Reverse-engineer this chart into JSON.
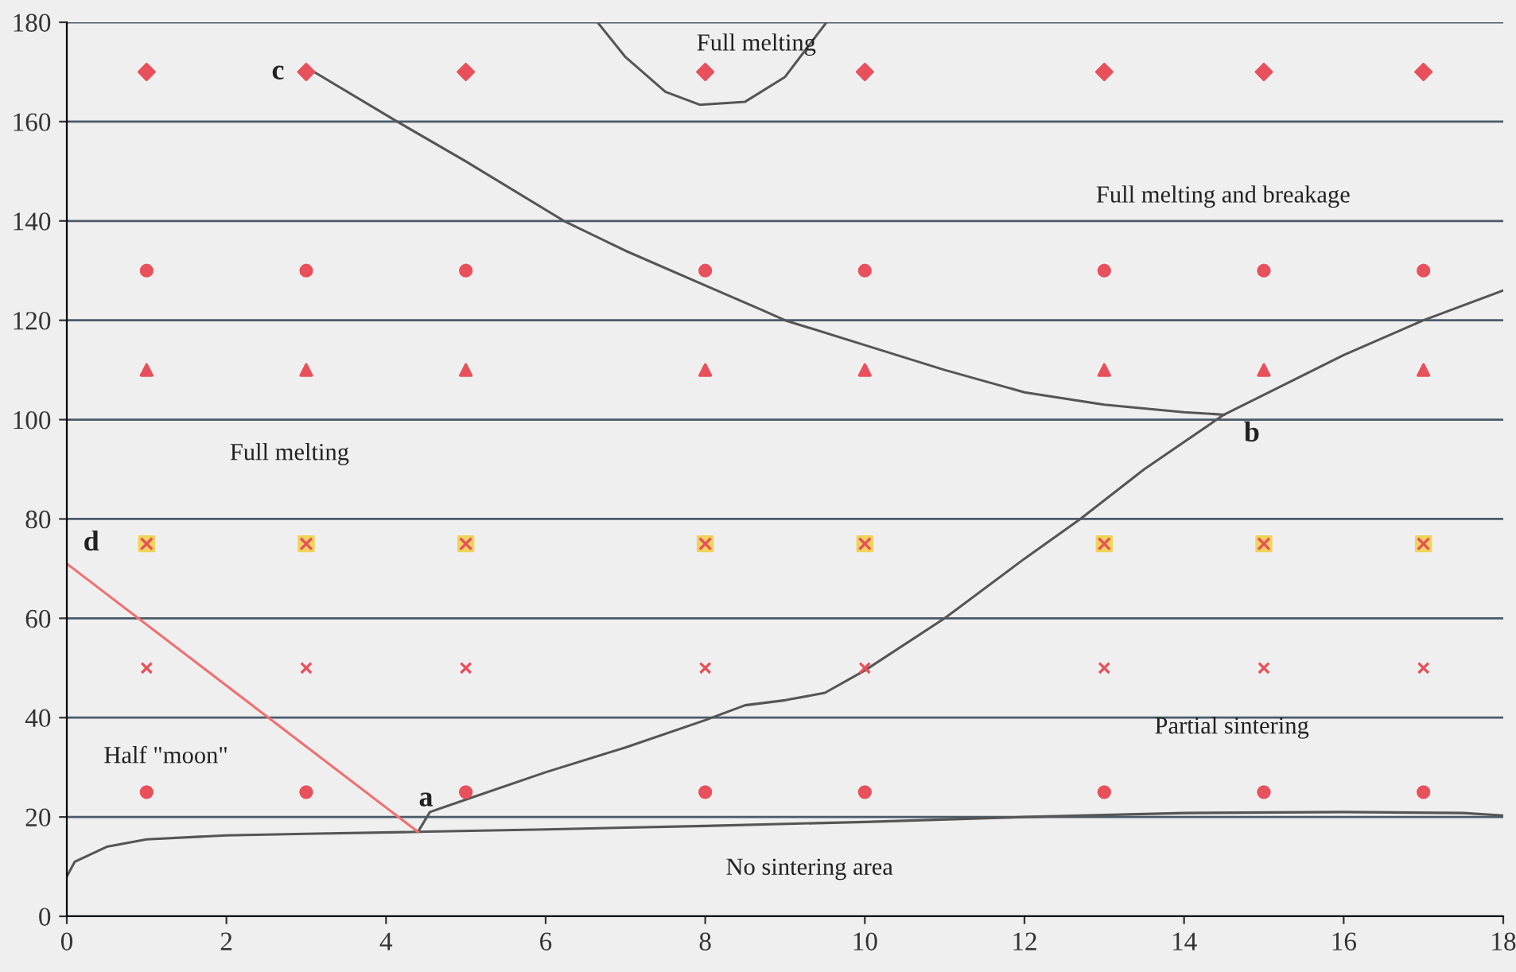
{
  "chart_data": {
    "type": "scatter",
    "xlim": [
      0,
      18
    ],
    "ylim": [
      0,
      180
    ],
    "xticks": [
      0,
      2,
      4,
      6,
      8,
      10,
      12,
      14,
      16,
      18
    ],
    "yticks": [
      0,
      20,
      40,
      60,
      80,
      100,
      120,
      140,
      160,
      180
    ],
    "grid": "y",
    "legend": false,
    "x": [
      1,
      3,
      5,
      8,
      10,
      13,
      15,
      17
    ],
    "series": [
      {
        "color": "#e8505b",
        "marker": "circle",
        "values": [
          25,
          25,
          25,
          25,
          25,
          25,
          25,
          25
        ]
      },
      {
        "color": "#e8505b",
        "marker": "cross",
        "values": [
          50,
          50,
          50,
          50,
          50,
          50,
          50,
          50
        ]
      },
      {
        "color": "#f2d35a",
        "marker": "square",
        "values": [
          75,
          75,
          75,
          75,
          75,
          75,
          75,
          75
        ]
      },
      {
        "color": "#e8505b",
        "marker": "triangle",
        "values": [
          110,
          110,
          110,
          110,
          110,
          110,
          110,
          110
        ]
      },
      {
        "color": "#e8505b",
        "marker": "circle",
        "values": [
          130,
          130,
          130,
          130,
          130,
          130,
          130,
          130
        ]
      },
      {
        "color": "#e8505b",
        "marker": "diamond",
        "values": [
          170,
          170,
          170,
          170,
          170,
          170,
          170,
          170
        ]
      },
      {
        "type": "line",
        "color": "#555555",
        "marker": "none",
        "x": [
          0,
          0.1,
          0.5,
          1,
          2,
          3,
          4.4,
          6,
          8,
          10,
          12,
          14,
          16,
          17.5,
          18
        ],
        "values": [
          8,
          11,
          14,
          15.5,
          16.3,
          16.6,
          17,
          17.5,
          18.2,
          19,
          20,
          20.8,
          21,
          20.8,
          20.3
        ]
      },
      {
        "type": "line",
        "color": "#555555",
        "marker": "none",
        "x": [
          4.4,
          4.55,
          5,
          6,
          7,
          8,
          8.5,
          9,
          9.5,
          10,
          11,
          12,
          12.7,
          13.5,
          14.5,
          15,
          16,
          17,
          18
        ],
        "values": [
          17,
          21,
          23.5,
          29,
          34,
          39.5,
          42.5,
          43.5,
          45,
          49.5,
          60,
          72,
          80,
          90,
          101,
          105,
          113,
          120,
          126
        ]
      },
      {
        "type": "line",
        "color": "#555555",
        "marker": "none",
        "x": [
          3.1,
          4.14,
          5,
          6.23,
          7,
          8,
          8.72,
          9,
          10,
          11,
          12,
          13,
          14,
          14.5
        ],
        "values": [
          170,
          160,
          152,
          140,
          134,
          127,
          122,
          120,
          115,
          110,
          105.5,
          103,
          101.5,
          101
        ]
      },
      {
        "type": "line",
        "color": "#555555",
        "marker": "none",
        "x": [
          6.65,
          7,
          7.5,
          7.93,
          8.5,
          9,
          9.52
        ],
        "values": [
          180,
          173,
          166,
          163.4,
          164,
          169,
          180
        ]
      },
      {
        "type": "line",
        "color": "#f07070",
        "marker": "none",
        "x": [
          0,
          4.4
        ],
        "values": [
          71,
          17
        ]
      }
    ],
    "annotations": [
      "Full melting",
      "Full melting and breakage",
      "Full melting",
      "Half \"moon\"",
      "Partial sintering",
      "No sintering area",
      "c",
      "b",
      "a",
      "d"
    ]
  }
}
